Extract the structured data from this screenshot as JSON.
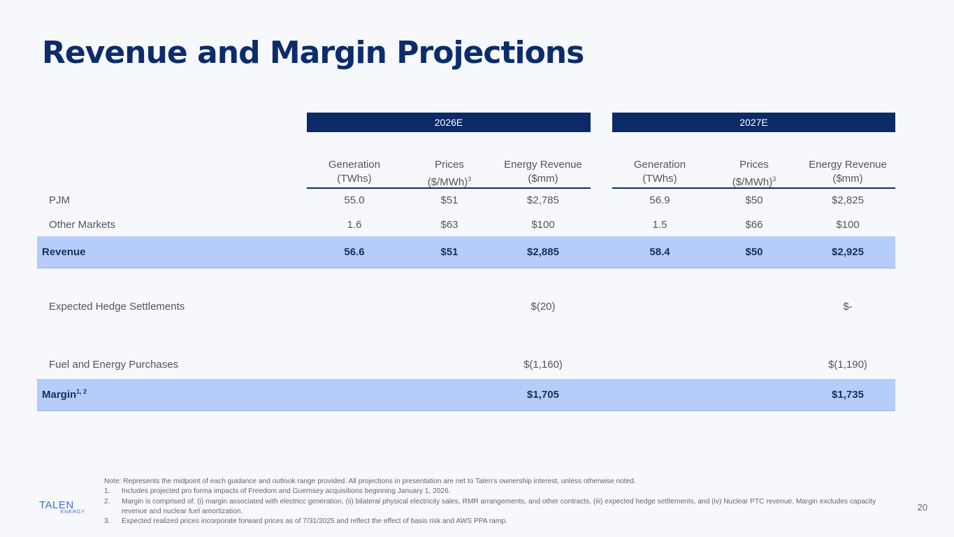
{
  "title": "Revenue and Margin Projections",
  "years": [
    "2026E",
    "2027E"
  ],
  "col_headers": [
    {
      "l1": "Generation",
      "l2": "(TWhs)",
      "sup": ""
    },
    {
      "l1": "Prices",
      "l2": "($/MWh)",
      "sup": "3"
    },
    {
      "l1": "Energy Revenue",
      "l2": "($mm)",
      "sup": ""
    },
    {
      "l1": "Generation",
      "l2": "(TWhs)",
      "sup": ""
    },
    {
      "l1": "Prices",
      "l2": "($/MWh)",
      "sup": "3"
    },
    {
      "l1": "Energy Revenue",
      "l2": "($mm)",
      "sup": ""
    }
  ],
  "rows": [
    {
      "label": "PJM",
      "sup": "",
      "cells": [
        "55.0",
        "$51",
        "$2,785",
        "56.9",
        "$50",
        "$2,825"
      ]
    },
    {
      "label": "Other Markets",
      "sup": "",
      "cells": [
        "1.6",
        "$63",
        "$100",
        "1.5",
        "$66",
        "$100"
      ]
    },
    {
      "label": "Revenue",
      "sup": "",
      "cells": [
        "56.6",
        "$51",
        "$2,885",
        "58.4",
        "$50",
        "$2,925"
      ]
    },
    {
      "label": "Expected Hedge Settlements",
      "sup": "",
      "cells": [
        "",
        "",
        "$(20)",
        "",
        "",
        "$-"
      ]
    },
    {
      "label": "Fuel and Energy Purchases",
      "sup": "",
      "cells": [
        "",
        "",
        "$(1,160)",
        "",
        "",
        "$(1,190)"
      ]
    },
    {
      "label": "Margin",
      "sup": "1, 2",
      "cells": [
        "",
        "",
        "$1,705",
        "",
        "",
        "$1,735"
      ]
    }
  ],
  "notes": {
    "intro": "Note: Represents the midpoint of each guidance and outlook range provided. All projections in presentation are net to Talen’s ownership interest, unless otherwise noted.",
    "items": [
      {
        "num": "1.",
        "text": "Includes projected pro forma impacts of Freedom and Guernsey acquisitions beginning January 1, 2026."
      },
      {
        "num": "2.",
        "text": "Margin is comprised of: (i) margin associated with electricc generation, (ii) bilateral physical electricity sales, RMR arrangements, and other contracts, (iii) expected hedge settlements, and (iv) Nuclear PTC revenue. Margin excludes capacity revenue and nuclear fuel amortization."
      },
      {
        "num": "3.",
        "text": "Expected realized prices incorporate forward prices as of 7/31/2025 and reflect the effect of basis risk and AWS PPA ramp."
      }
    ]
  },
  "logo": {
    "name": "TALEN",
    "sub": "ENERGY"
  },
  "page_number": "20"
}
